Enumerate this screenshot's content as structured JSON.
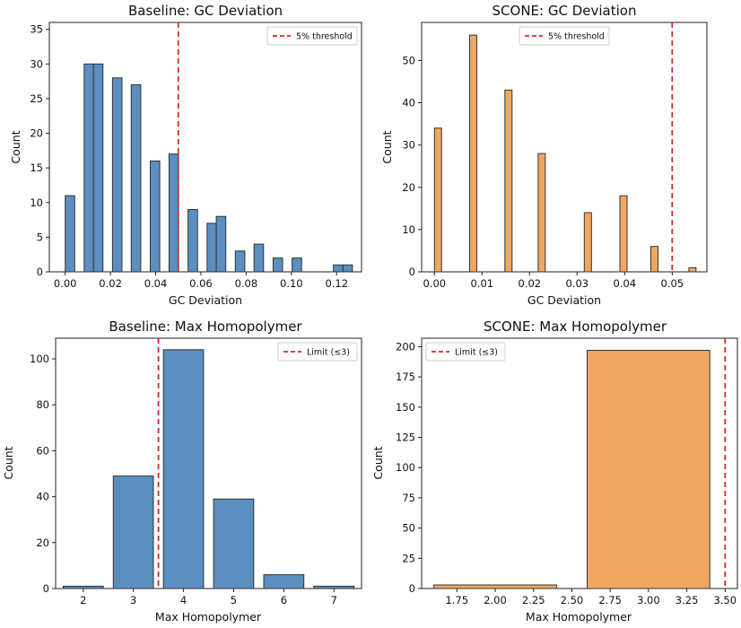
{
  "chart_data": [
    {
      "type": "bar",
      "variant": "histogram",
      "title": "Baseline: GC Deviation",
      "xlabel": "GC Deviation",
      "ylabel": "Count",
      "xlim": [
        -0.007,
        0.131
      ],
      "ylim": [
        0,
        36
      ],
      "xticks": [
        0.0,
        0.02,
        0.04,
        0.06,
        0.08,
        0.1,
        0.12
      ],
      "xtick_labels": [
        "0.00",
        "0.02",
        "0.04",
        "0.06",
        "0.08",
        "0.10",
        "0.12"
      ],
      "yticks": [
        0,
        5,
        10,
        15,
        20,
        25,
        30,
        35
      ],
      "ytick_labels": [
        "0",
        "5",
        "10",
        "15",
        "20",
        "25",
        "30",
        "35"
      ],
      "bars": [
        {
          "x0": 0.0,
          "x1": 0.0042,
          "value": 11
        },
        {
          "x0": 0.0084,
          "x1": 0.0126,
          "value": 30
        },
        {
          "x0": 0.0125,
          "x1": 0.0167,
          "value": 30
        },
        {
          "x0": 0.0209,
          "x1": 0.0251,
          "value": 28
        },
        {
          "x0": 0.0292,
          "x1": 0.0334,
          "value": 27
        },
        {
          "x0": 0.0376,
          "x1": 0.0418,
          "value": 16
        },
        {
          "x0": 0.0459,
          "x1": 0.0501,
          "value": 17
        },
        {
          "x0": 0.0543,
          "x1": 0.0585,
          "value": 9
        },
        {
          "x0": 0.0627,
          "x1": 0.0669,
          "value": 7
        },
        {
          "x0": 0.0668,
          "x1": 0.071,
          "value": 8
        },
        {
          "x0": 0.0752,
          "x1": 0.0794,
          "value": 3
        },
        {
          "x0": 0.0835,
          "x1": 0.0877,
          "value": 4
        },
        {
          "x0": 0.0919,
          "x1": 0.0961,
          "value": 2
        },
        {
          "x0": 0.1003,
          "x1": 0.1045,
          "value": 2
        },
        {
          "x0": 0.1186,
          "x1": 0.1228,
          "value": 1
        },
        {
          "x0": 0.1228,
          "x1": 0.127,
          "value": 1
        }
      ],
      "threshold": {
        "x": 0.05,
        "label": "5% threshold"
      },
      "legend_position": "top-right",
      "bar_color": "#5b8fc0",
      "threshold_color": "#d62728"
    },
    {
      "type": "bar",
      "variant": "histogram",
      "title": "SCONE: GC Deviation",
      "xlabel": "GC Deviation",
      "ylabel": "Count",
      "xlim": [
        -0.0027,
        0.0573
      ],
      "ylim": [
        0,
        59
      ],
      "xticks": [
        0.0,
        0.01,
        0.02,
        0.03,
        0.04,
        0.05
      ],
      "xtick_labels": [
        "0.00",
        "0.01",
        "0.02",
        "0.03",
        "0.04",
        "0.05"
      ],
      "yticks": [
        0,
        10,
        20,
        30,
        40,
        50
      ],
      "ytick_labels": [
        "0",
        "10",
        "20",
        "30",
        "40",
        "50"
      ],
      "bars": [
        {
          "x0": 0.0,
          "x1": 0.0015,
          "value": 34
        },
        {
          "x0": 0.0074,
          "x1": 0.0089,
          "value": 56
        },
        {
          "x0": 0.0148,
          "x1": 0.0163,
          "value": 43
        },
        {
          "x0": 0.0218,
          "x1": 0.0233,
          "value": 28
        },
        {
          "x0": 0.0315,
          "x1": 0.033,
          "value": 14
        },
        {
          "x0": 0.039,
          "x1": 0.0405,
          "value": 18
        },
        {
          "x0": 0.0455,
          "x1": 0.047,
          "value": 6
        },
        {
          "x0": 0.0535,
          "x1": 0.055,
          "value": 1
        }
      ],
      "threshold": {
        "x": 0.05,
        "label": "5% threshold"
      },
      "legend_position": "top-center",
      "bar_color": "#f0a860",
      "threshold_color": "#d62728"
    },
    {
      "type": "bar",
      "title": "Baseline: Max Homopolymer",
      "xlabel": "Max Homopolymer",
      "ylabel": "Count",
      "xlim": [
        1.45,
        7.55
      ],
      "ylim": [
        0,
        109
      ],
      "xticks": [
        2,
        3,
        4,
        5,
        6,
        7
      ],
      "xtick_labels": [
        "2",
        "3",
        "4",
        "5",
        "6",
        "7"
      ],
      "yticks": [
        0,
        20,
        40,
        60,
        80,
        100
      ],
      "ytick_labels": [
        "0",
        "20",
        "40",
        "60",
        "80",
        "100"
      ],
      "bars": [
        {
          "x0": 1.6,
          "x1": 2.4,
          "value": 1
        },
        {
          "x0": 2.6,
          "x1": 3.4,
          "value": 49
        },
        {
          "x0": 3.6,
          "x1": 4.4,
          "value": 104
        },
        {
          "x0": 4.6,
          "x1": 5.4,
          "value": 39
        },
        {
          "x0": 5.6,
          "x1": 6.4,
          "value": 6
        },
        {
          "x0": 6.6,
          "x1": 7.4,
          "value": 1
        }
      ],
      "threshold": {
        "x": 3.5,
        "label": "Limit (≤3)"
      },
      "legend_position": "top-right",
      "bar_color": "#5b8fc0",
      "threshold_color": "#d62728"
    },
    {
      "type": "bar",
      "title": "SCONE: Max Homopolymer",
      "xlabel": "Max Homopolymer",
      "ylabel": "Count",
      "xlim": [
        1.52,
        3.58
      ],
      "ylim": [
        0,
        207
      ],
      "xticks": [
        1.75,
        2.0,
        2.25,
        2.5,
        2.75,
        3.0,
        3.25,
        3.5
      ],
      "xtick_labels": [
        "1.75",
        "2.00",
        "2.25",
        "2.50",
        "2.75",
        "3.00",
        "3.25",
        "3.50"
      ],
      "yticks": [
        0,
        25,
        50,
        75,
        100,
        125,
        150,
        175,
        200
      ],
      "ytick_labels": [
        "0",
        "25",
        "50",
        "75",
        "100",
        "125",
        "150",
        "175",
        "200"
      ],
      "bars": [
        {
          "x0": 1.6,
          "x1": 2.4,
          "value": 3
        },
        {
          "x0": 2.6,
          "x1": 3.4,
          "value": 197
        }
      ],
      "threshold": {
        "x": 3.5,
        "label": "Limit (≤3)"
      },
      "legend_position": "top-left",
      "bar_color": "#f0a860",
      "threshold_color": "#d62728"
    }
  ]
}
